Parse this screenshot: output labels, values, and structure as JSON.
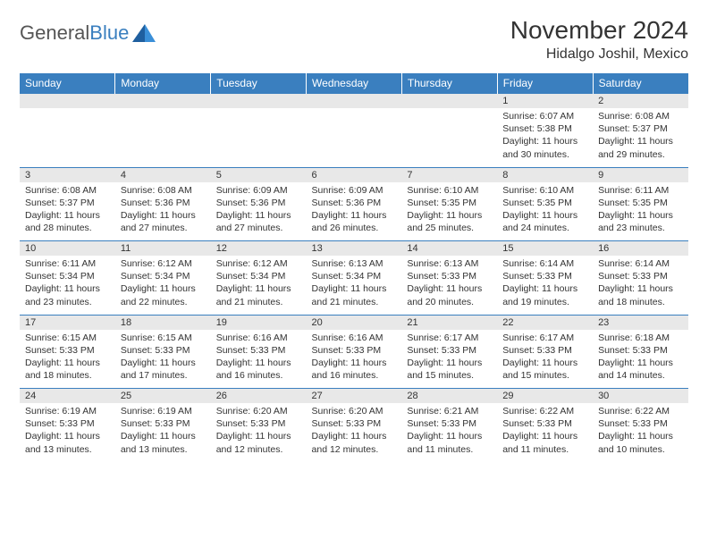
{
  "logo": {
    "word1": "General",
    "word2": "Blue"
  },
  "title": "November 2024",
  "location": "Hidalgo Joshil, Mexico",
  "colors": {
    "header_bg": "#3a7fbf",
    "header_fg": "#ffffff",
    "daynum_bg": "#e8e8e8",
    "border": "#3a7fbf",
    "text": "#333333",
    "logo_gray": "#555555",
    "logo_blue": "#3a7fbf",
    "page_bg": "#ffffff"
  },
  "typography": {
    "title_fontsize": 28,
    "location_fontsize": 16,
    "header_fontsize": 12,
    "daynum_fontsize": 11,
    "detail_fontsize": 10.5
  },
  "day_headers": [
    "Sunday",
    "Monday",
    "Tuesday",
    "Wednesday",
    "Thursday",
    "Friday",
    "Saturday"
  ],
  "weeks": [
    {
      "nums": [
        "",
        "",
        "",
        "",
        "",
        "1",
        "2"
      ],
      "details": [
        "",
        "",
        "",
        "",
        "",
        "Sunrise: 6:07 AM\nSunset: 5:38 PM\nDaylight: 11 hours and 30 minutes.",
        "Sunrise: 6:08 AM\nSunset: 5:37 PM\nDaylight: 11 hours and 29 minutes."
      ]
    },
    {
      "nums": [
        "3",
        "4",
        "5",
        "6",
        "7",
        "8",
        "9"
      ],
      "details": [
        "Sunrise: 6:08 AM\nSunset: 5:37 PM\nDaylight: 11 hours and 28 minutes.",
        "Sunrise: 6:08 AM\nSunset: 5:36 PM\nDaylight: 11 hours and 27 minutes.",
        "Sunrise: 6:09 AM\nSunset: 5:36 PM\nDaylight: 11 hours and 27 minutes.",
        "Sunrise: 6:09 AM\nSunset: 5:36 PM\nDaylight: 11 hours and 26 minutes.",
        "Sunrise: 6:10 AM\nSunset: 5:35 PM\nDaylight: 11 hours and 25 minutes.",
        "Sunrise: 6:10 AM\nSunset: 5:35 PM\nDaylight: 11 hours and 24 minutes.",
        "Sunrise: 6:11 AM\nSunset: 5:35 PM\nDaylight: 11 hours and 23 minutes."
      ]
    },
    {
      "nums": [
        "10",
        "11",
        "12",
        "13",
        "14",
        "15",
        "16"
      ],
      "details": [
        "Sunrise: 6:11 AM\nSunset: 5:34 PM\nDaylight: 11 hours and 23 minutes.",
        "Sunrise: 6:12 AM\nSunset: 5:34 PM\nDaylight: 11 hours and 22 minutes.",
        "Sunrise: 6:12 AM\nSunset: 5:34 PM\nDaylight: 11 hours and 21 minutes.",
        "Sunrise: 6:13 AM\nSunset: 5:34 PM\nDaylight: 11 hours and 21 minutes.",
        "Sunrise: 6:13 AM\nSunset: 5:33 PM\nDaylight: 11 hours and 20 minutes.",
        "Sunrise: 6:14 AM\nSunset: 5:33 PM\nDaylight: 11 hours and 19 minutes.",
        "Sunrise: 6:14 AM\nSunset: 5:33 PM\nDaylight: 11 hours and 18 minutes."
      ]
    },
    {
      "nums": [
        "17",
        "18",
        "19",
        "20",
        "21",
        "22",
        "23"
      ],
      "details": [
        "Sunrise: 6:15 AM\nSunset: 5:33 PM\nDaylight: 11 hours and 18 minutes.",
        "Sunrise: 6:15 AM\nSunset: 5:33 PM\nDaylight: 11 hours and 17 minutes.",
        "Sunrise: 6:16 AM\nSunset: 5:33 PM\nDaylight: 11 hours and 16 minutes.",
        "Sunrise: 6:16 AM\nSunset: 5:33 PM\nDaylight: 11 hours and 16 minutes.",
        "Sunrise: 6:17 AM\nSunset: 5:33 PM\nDaylight: 11 hours and 15 minutes.",
        "Sunrise: 6:17 AM\nSunset: 5:33 PM\nDaylight: 11 hours and 15 minutes.",
        "Sunrise: 6:18 AM\nSunset: 5:33 PM\nDaylight: 11 hours and 14 minutes."
      ]
    },
    {
      "nums": [
        "24",
        "25",
        "26",
        "27",
        "28",
        "29",
        "30"
      ],
      "details": [
        "Sunrise: 6:19 AM\nSunset: 5:33 PM\nDaylight: 11 hours and 13 minutes.",
        "Sunrise: 6:19 AM\nSunset: 5:33 PM\nDaylight: 11 hours and 13 minutes.",
        "Sunrise: 6:20 AM\nSunset: 5:33 PM\nDaylight: 11 hours and 12 minutes.",
        "Sunrise: 6:20 AM\nSunset: 5:33 PM\nDaylight: 11 hours and 12 minutes.",
        "Sunrise: 6:21 AM\nSunset: 5:33 PM\nDaylight: 11 hours and 11 minutes.",
        "Sunrise: 6:22 AM\nSunset: 5:33 PM\nDaylight: 11 hours and 11 minutes.",
        "Sunrise: 6:22 AM\nSunset: 5:33 PM\nDaylight: 11 hours and 10 minutes."
      ]
    }
  ]
}
